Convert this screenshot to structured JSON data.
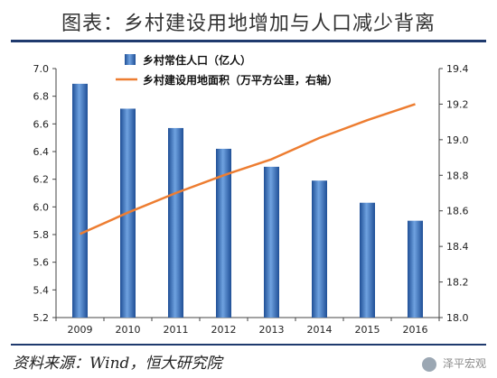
{
  "title": "图表：乡村建设用地增加与人口减少背离",
  "source": "资料来源：Wind，恒大研究院",
  "watermark": "泽平宏观",
  "colors": {
    "bar": "#3a74c2",
    "line": "#ed7d31",
    "rule": "#1f3a6e"
  },
  "chart_data": {
    "type": "bar",
    "categories": [
      "2009",
      "2010",
      "2011",
      "2012",
      "2013",
      "2014",
      "2015",
      "2016"
    ],
    "series": [
      {
        "name": "乡村常住人口（亿人）",
        "type": "bar",
        "axis": "left",
        "values": [
          6.89,
          6.71,
          6.57,
          6.42,
          6.29,
          6.19,
          6.03,
          5.9
        ]
      },
      {
        "name": "乡村建设用地面积（万平方公里，右轴）",
        "type": "line",
        "axis": "right",
        "values": [
          18.47,
          18.59,
          18.7,
          18.8,
          18.89,
          19.01,
          19.11,
          19.2
        ]
      }
    ],
    "ylim": [
      5.2,
      7.0
    ],
    "yticks": [
      "5.2",
      "5.4",
      "5.6",
      "5.8",
      "6.0",
      "6.2",
      "6.4",
      "6.6",
      "6.8",
      "7.0"
    ],
    "y2lim": [
      18.0,
      19.4
    ],
    "y2ticks": [
      "18.0",
      "18.2",
      "18.4",
      "18.6",
      "18.8",
      "19.0",
      "19.2",
      "19.4"
    ],
    "legend_position": "top-center",
    "grid": false
  }
}
